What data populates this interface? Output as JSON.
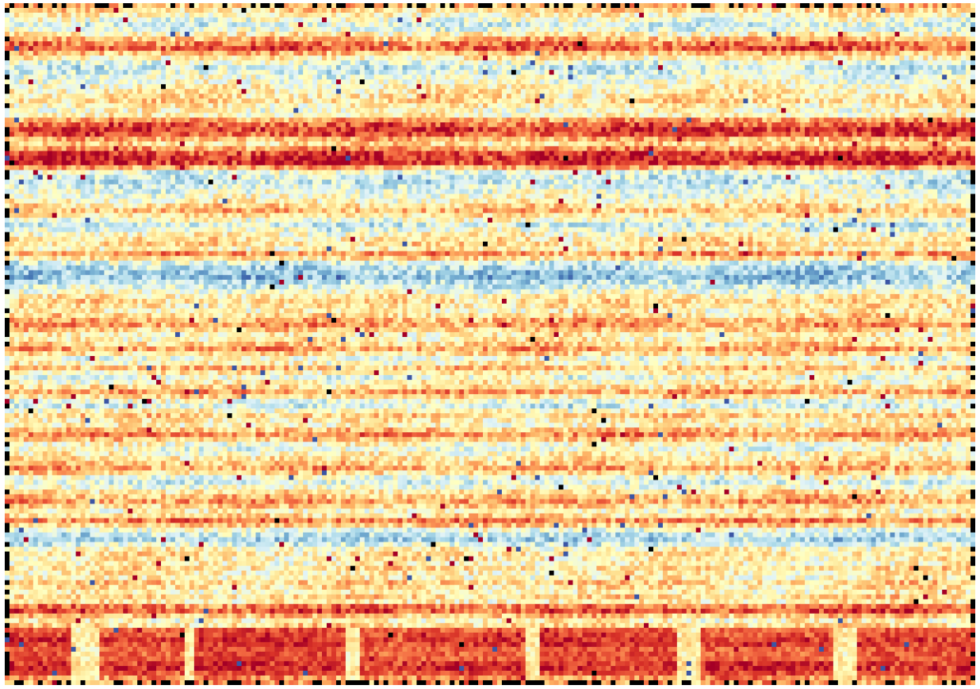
{
  "chart_data": {
    "type": "heatmap",
    "title": "",
    "xlabel": "",
    "ylabel": "",
    "axes_visible": false,
    "colorbar_visible": false,
    "grid": false,
    "n_rows": 143,
    "n_cols": 205,
    "colormap": [
      "#313695",
      "#4575b4",
      "#74add1",
      "#abd9e9",
      "#e0f3f8",
      "#ffffbf",
      "#fee090",
      "#fdae61",
      "#f46d43",
      "#d73027",
      "#a50026"
    ],
    "missing_color": "#000000",
    "value_range": [
      -1,
      1
    ],
    "row_profile": [
      0.35,
      0.2,
      0.05,
      -0.1,
      -0.2,
      -0.15,
      0.1,
      0.35,
      0.55,
      0.65,
      0.35,
      0.1,
      -0.15,
      -0.25,
      -0.2,
      -0.1,
      -0.05,
      0.05,
      0.1,
      0.15,
      0.2,
      0.1,
      0.0,
      0.05,
      0.45,
      0.65,
      0.8,
      0.7,
      0.35,
      0.2,
      0.45,
      0.75,
      0.85,
      0.8,
      0.4,
      -0.15,
      -0.25,
      -0.3,
      -0.2,
      -0.1,
      -0.05,
      0.05,
      0.2,
      0.35,
      0.15,
      -0.05,
      -0.25,
      -0.1,
      0.05,
      0.15,
      0.2,
      0.1,
      0.45,
      0.2,
      -0.2,
      -0.35,
      -0.45,
      -0.5,
      -0.35,
      -0.2,
      -0.05,
      0.1,
      0.2,
      0.15,
      0.05,
      0.2,
      0.35,
      0.45,
      0.25,
      0.05,
      0.1,
      0.25,
      0.45,
      0.2,
      -0.05,
      0.05,
      0.3,
      0.1,
      -0.1,
      0.05,
      0.2,
      0.45,
      0.2,
      -0.1,
      -0.2,
      0.05,
      0.25,
      0.1,
      0.05,
      0.3,
      0.5,
      0.25,
      0.0,
      -0.1,
      0.05,
      0.15,
      0.25,
      0.4,
      0.2,
      -0.1,
      -0.2,
      -0.05,
      0.15,
      0.3,
      0.45,
      0.25,
      0.05,
      0.2,
      0.55,
      0.25,
      -0.1,
      -0.3,
      -0.4,
      -0.2,
      0.05,
      0.15,
      0.1,
      0.05,
      0.2,
      0.1,
      0.05,
      0.25,
      0.15,
      0.05,
      0.2,
      0.1,
      0.55,
      0.7,
      0.3,
      0.05,
      0.2,
      0.35,
      0.6,
      0.75,
      0.7,
      0.3,
      0.2,
      0.4,
      0.75,
      0.85,
      0.65,
      0.5,
      0.4
    ],
    "column_profile": {
      "baseline": 0.0,
      "vertical_band_every": 17,
      "vertical_band_shift": -0.15
    },
    "bottom_block_rows_start": 129,
    "bottom_block_columns": [
      [
        0,
        14
      ],
      [
        20,
        38
      ],
      [
        40,
        72
      ],
      [
        75,
        110
      ],
      [
        113,
        142
      ],
      [
        147,
        175
      ],
      [
        180,
        205
      ]
    ],
    "bottom_block_values": [
      0.85,
      0.8,
      0.9,
      0.8,
      0.85,
      0.8,
      0.85
    ]
  }
}
